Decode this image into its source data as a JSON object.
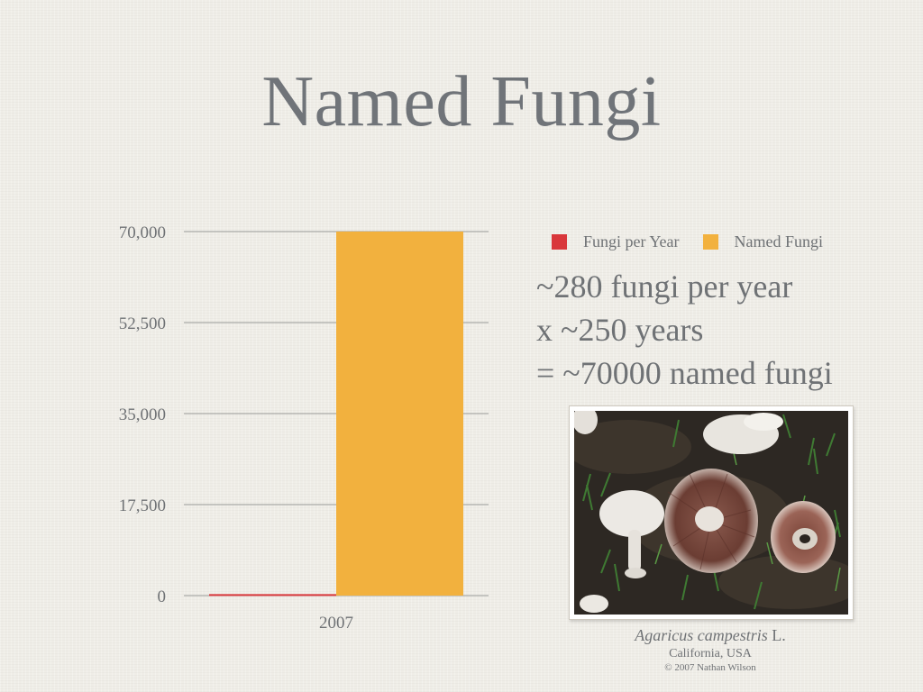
{
  "slide": {
    "title": "Named Fungi"
  },
  "legend": {
    "items": [
      {
        "label": "Fungi per Year",
        "color": "#d9373b"
      },
      {
        "label": "Named Fungi",
        "color": "#f2b13e"
      }
    ]
  },
  "calculation": {
    "lines": [
      "~280 fungi per year",
      "x ~250 years",
      "= ~70000 named fungi"
    ]
  },
  "photo": {
    "subject_icon": "mushroom-photo",
    "caption_species": "Agaricus campestris",
    "caption_author": " L.",
    "caption_location": "California, USA",
    "caption_copyright": "© 2007 Nathan Wilson"
  },
  "chart_data": {
    "type": "bar",
    "categories": [
      "2007"
    ],
    "series": [
      {
        "name": "Fungi per Year",
        "values": [
          280
        ],
        "color": "#d9373b"
      },
      {
        "name": "Named Fungi",
        "values": [
          70000
        ],
        "color": "#f2b13e"
      }
    ],
    "ylim": [
      0,
      70000
    ],
    "yticks": [
      0,
      17500,
      35000,
      52500,
      70000
    ],
    "ytick_labels": [
      "0",
      "17,500",
      "35,000",
      "52,500",
      "70,000"
    ],
    "grid": true,
    "legend_position": "top-right"
  }
}
